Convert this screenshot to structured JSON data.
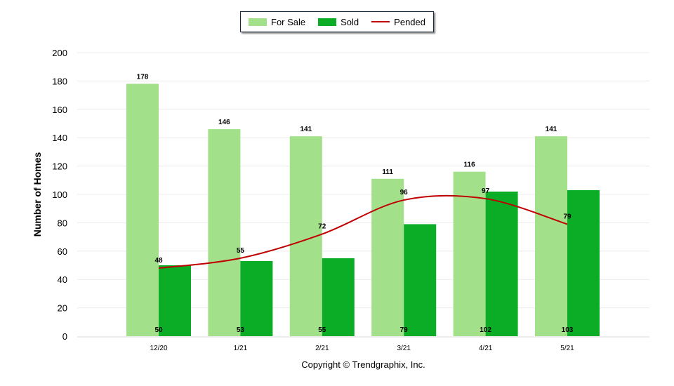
{
  "chart_data": {
    "type": "bar",
    "categories": [
      "12/20",
      "1/21",
      "2/21",
      "3/21",
      "4/21",
      "5/21"
    ],
    "series": [
      {
        "name": "For Sale",
        "type": "bar",
        "color": "#a3e08a",
        "values": [
          178,
          146,
          141,
          111,
          116,
          141
        ]
      },
      {
        "name": "Sold",
        "type": "bar",
        "color": "#0bac26",
        "values": [
          50,
          53,
          55,
          79,
          102,
          103
        ]
      },
      {
        "name": "Pended",
        "type": "line",
        "color": "#c00000",
        "values": [
          48,
          55,
          72,
          96,
          97,
          79
        ]
      }
    ],
    "title": "",
    "xlabel": "",
    "ylabel": "Number of Homes",
    "ylim": [
      0,
      200
    ],
    "yticks": [
      0,
      20,
      40,
      60,
      80,
      100,
      120,
      140,
      160,
      180,
      200
    ],
    "grid": true,
    "legend_position": "top-center"
  },
  "footer": {
    "copyright": "Copyright © Trendgraphix, Inc."
  }
}
